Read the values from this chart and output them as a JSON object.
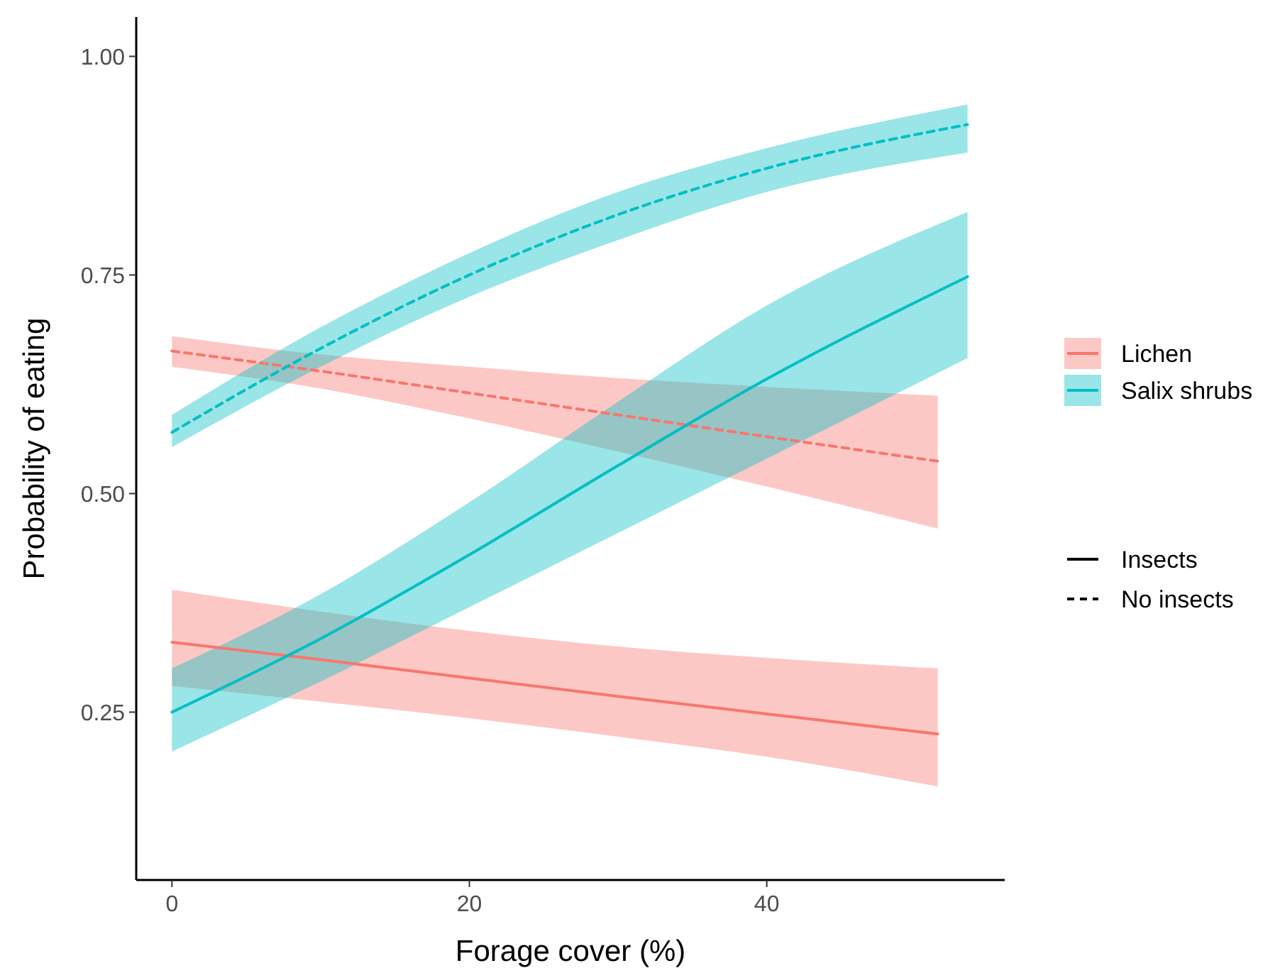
{
  "chart_data": {
    "type": "line",
    "xlabel": "Forage cover (%)",
    "ylabel": "Probability of eating",
    "xlim": [
      -2.4,
      56
    ],
    "ylim": [
      0.058,
      1.045
    ],
    "xticks": [
      0,
      20,
      40
    ],
    "yticks": [
      {
        "value": 0.25,
        "label": "0.25"
      },
      {
        "value": 0.5,
        "label": "0.50"
      },
      {
        "value": 0.75,
        "label": "0.75"
      },
      {
        "value": 1,
        "label": "1.00"
      }
    ],
    "grid": false,
    "legend": "right",
    "annotations": [
      "Insects",
      "No insects"
    ],
    "series": [
      {
        "name": "Lichen",
        "color": "#f8766d",
        "line_style": "solid",
        "x": [
          0,
          10,
          20,
          30,
          40,
          51.5
        ],
        "values": [
          0.33,
          0.31,
          0.289,
          0.268,
          0.248,
          0.225
        ],
        "lower": [
          0.28,
          0.262,
          0.243,
          0.222,
          0.199,
          0.165
        ],
        "upper": [
          0.39,
          0.365,
          0.343,
          0.325,
          0.312,
          0.3
        ]
      },
      {
        "color": "#f8766d",
        "line_style": "dashed",
        "x": [
          0,
          10,
          20,
          30,
          40,
          51.5
        ],
        "values": [
          0.663,
          0.64,
          0.615,
          0.59,
          0.565,
          0.537
        ],
        "lower": [
          0.645,
          0.62,
          0.586,
          0.548,
          0.508,
          0.46
        ],
        "upper": [
          0.68,
          0.659,
          0.645,
          0.632,
          0.622,
          0.612
        ]
      },
      {
        "name": "Salix shrubs",
        "color": "#00bfc4",
        "line_style": "solid",
        "x": [
          0,
          10,
          20,
          30,
          40,
          53.5
        ],
        "values": [
          0.25,
          0.334,
          0.43,
          0.532,
          0.631,
          0.748
        ],
        "lower": [
          0.205,
          0.285,
          0.37,
          0.455,
          0.54,
          0.655
        ],
        "upper": [
          0.3,
          0.385,
          0.49,
          0.605,
          0.715,
          0.822
        ]
      },
      {
        "color": "#00bfc4",
        "line_style": "dashed",
        "x": [
          0,
          10,
          20,
          30,
          40,
          53.5
        ],
        "values": [
          0.57,
          0.666,
          0.75,
          0.819,
          0.872,
          0.922
        ],
        "lower": [
          0.553,
          0.645,
          0.725,
          0.79,
          0.845,
          0.89
        ],
        "upper": [
          0.59,
          0.69,
          0.775,
          0.845,
          0.895,
          0.945
        ]
      }
    ]
  }
}
